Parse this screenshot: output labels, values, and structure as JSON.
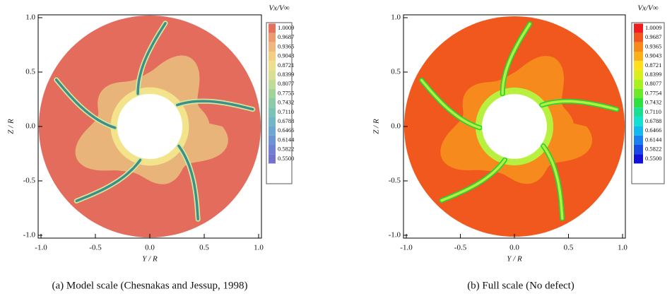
{
  "figure": {
    "panels": [
      {
        "caption": "(a) Model scale (Chesnakas and Jessup, 1998)",
        "x_label": "Y / R",
        "y_label": "Z / R",
        "xticks": [
          "-1.0",
          "-0.5",
          "0.0",
          "0.5",
          "1.0"
        ],
        "yticks": [
          "1.0",
          "0.5",
          "0.0",
          "-0.5",
          "-1.0"
        ],
        "colorbar_title": "Vx/V∞",
        "colorbar_levels": [
          "1.0009",
          "0.9687",
          "0.9365",
          "0.9043",
          "0.8721",
          "0.8399",
          "0.8077",
          "0.7755",
          "0.7432",
          "0.7110",
          "0.6788",
          "0.6466",
          "0.6144",
          "0.5822",
          "0.5500"
        ]
      },
      {
        "caption": "(b) Full scale (No defect)",
        "x_label": "Y / R",
        "y_label": "Z / R",
        "xticks": [
          "-1.0",
          "-0.5",
          "0.0",
          "0.5",
          "1.0"
        ],
        "yticks": [
          "1.0",
          "0.5",
          "0.0",
          "-0.5",
          "-1.0"
        ],
        "colorbar_title": "Vx/V∞",
        "colorbar_levels": [
          "1.0009",
          "0.9687",
          "0.9365",
          "0.9043",
          "0.8721",
          "0.8399",
          "0.8077",
          "0.7754",
          "0.7432",
          "0.7110",
          "0.6788",
          "0.6466",
          "0.6144",
          "0.5822",
          "0.5500"
        ]
      }
    ]
  }
}
